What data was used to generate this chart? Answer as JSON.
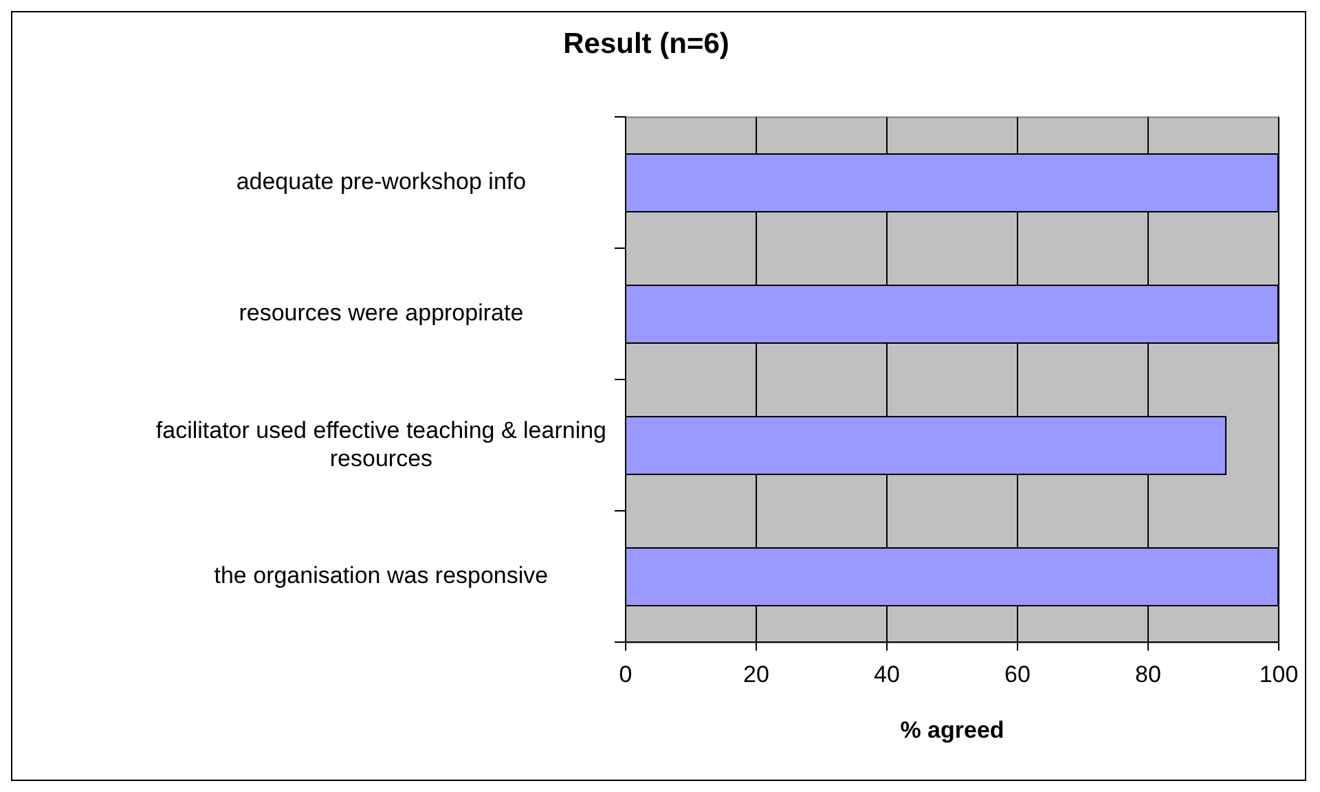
{
  "chart_data": {
    "type": "bar",
    "orientation": "horizontal",
    "title": "Result (n=6)",
    "xlabel": "% agreed",
    "categories": [
      "adequate pre-workshop info",
      "resources were appropirate",
      "facilitator used effective teaching & learning resources",
      "the organisation was responsive"
    ],
    "values": [
      100,
      100,
      92,
      100
    ],
    "color": "#9999ff",
    "xlim": [
      0,
      100
    ],
    "xticks": [
      0,
      20,
      40,
      60,
      80,
      100
    ],
    "grid": "x",
    "legend": false
  }
}
